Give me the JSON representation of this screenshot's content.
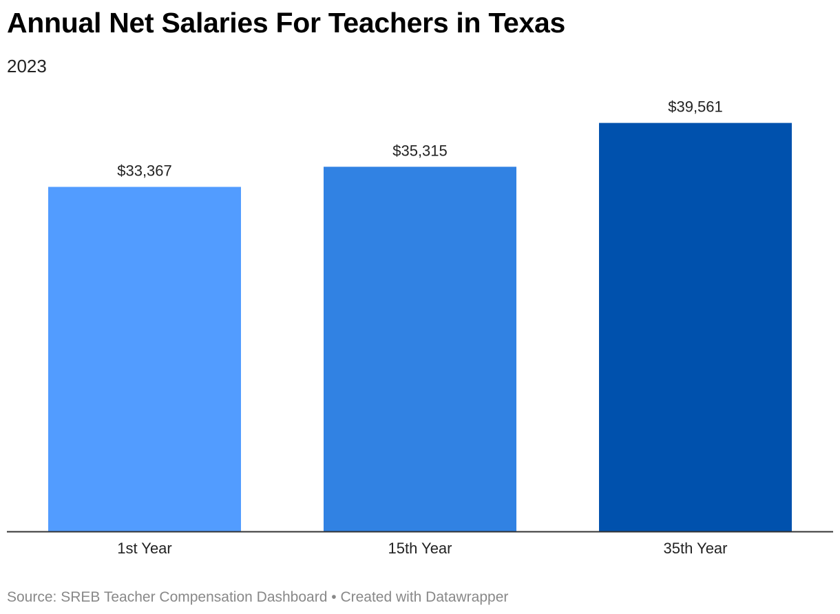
{
  "header": {
    "title": "Annual Net Salaries For Teachers in Texas",
    "subtitle": "2023"
  },
  "footer": {
    "source_label": "Source:",
    "source_name": "SREB Teacher Compensation Dashboard",
    "separator": "•",
    "credit": "Created with Datawrapper"
  },
  "chart_data": {
    "type": "bar",
    "title": "Annual Net Salaries For Teachers in Texas",
    "subtitle": "2023",
    "categories": [
      "1st Year",
      "15th Year",
      "35th Year"
    ],
    "values": [
      33367,
      35315,
      39561
    ],
    "value_labels": [
      "$33,367",
      "$35,315",
      "$39,561"
    ],
    "colors": [
      "#529cff",
      "#3182e3",
      "#0051ad"
    ],
    "ylim": [
      0,
      42000
    ],
    "grid": false,
    "xlabel": "",
    "ylabel": ""
  }
}
